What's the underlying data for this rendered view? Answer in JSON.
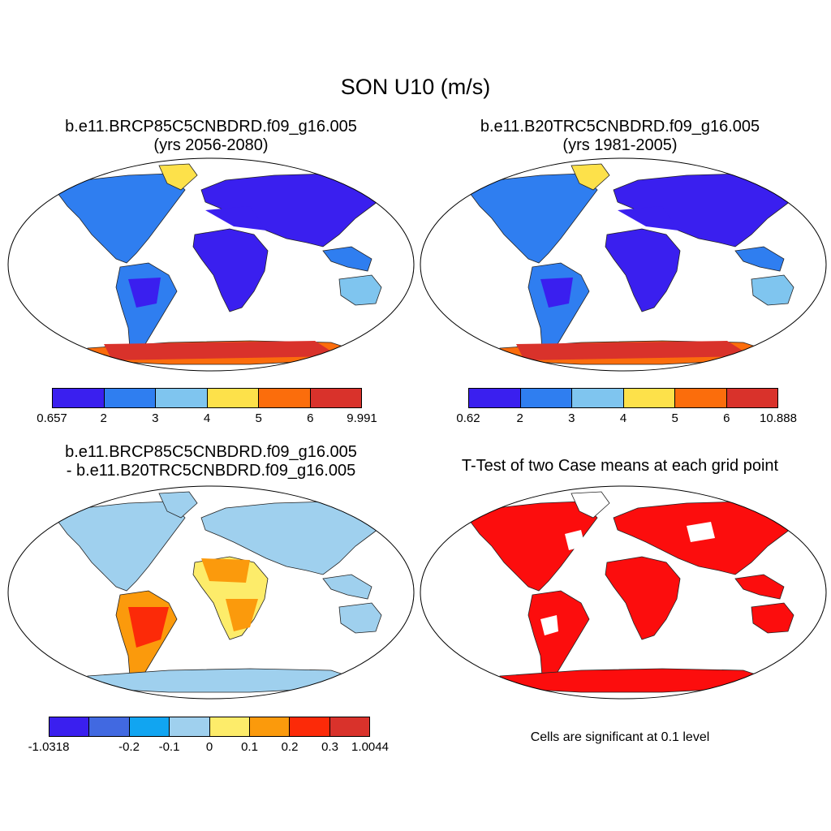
{
  "title": "SON U10 (m/s)",
  "panels": [
    {
      "title_line1": "b.e11.BRCP85C5CNBDRD.f09_g16.005",
      "title_line2": "(yrs 2056-2080)",
      "colorbar": {
        "colors": [
          "#3a1fef",
          "#2f7ef0",
          "#7fc5ef",
          "#fde14a",
          "#fb6d0c",
          "#d9322b"
        ],
        "labels": [
          "0.657",
          "2",
          "3",
          "4",
          "5",
          "6",
          "9.991"
        ]
      }
    },
    {
      "title_line1": "b.e11.B20TRC5CNBDRD.f09_g16.005",
      "title_line2": "(yrs 1981-2005)",
      "colorbar": {
        "colors": [
          "#3a1fef",
          "#2f7ef0",
          "#7fc5ef",
          "#fde14a",
          "#fb6d0c",
          "#d9322b"
        ],
        "labels": [
          "0.62",
          "2",
          "3",
          "4",
          "5",
          "6",
          "10.888"
        ]
      }
    },
    {
      "title_line1": "b.e11.BRCP85C5CNBDRD.f09_g16.005",
      "title_line2": "- b.e11.B20TRC5CNBDRD.f09_g16.005",
      "colorbar": {
        "colors": [
          "#3a1fef",
          "#4169e1",
          "#11a5f1",
          "#9fd0ee",
          "#fdec6a",
          "#fb9a0c",
          "#fc2a08",
          "#d9322b"
        ],
        "labels": [
          "-1.0318",
          "",
          "-0.2",
          "-0.1",
          "0",
          "0.1",
          "0.2",
          "0.3",
          "1.0044"
        ]
      }
    },
    {
      "title_line1": "T-Test of two Case means at each grid point",
      "note": "Cells are significant at 0.1 level"
    }
  ]
}
